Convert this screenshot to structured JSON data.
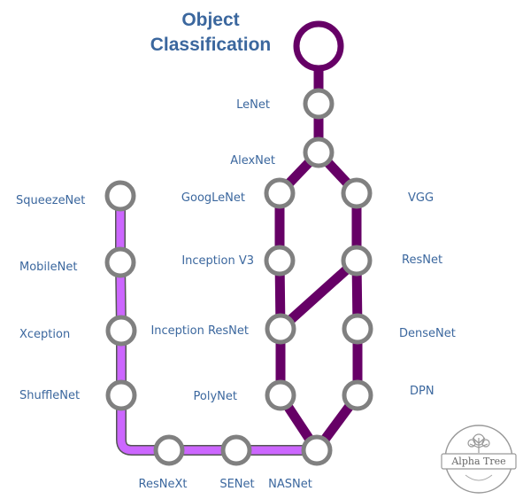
{
  "title": {
    "line1": "Object",
    "line2": "Classification"
  },
  "nodes": {
    "lenet": "LeNet",
    "alexnet": "AlexNet",
    "googlenet": "GoogLeNet",
    "vgg": "VGG",
    "inception_v3": "Inception V3",
    "resnet": "ResNet",
    "inception_resnet": "Inception ResNet",
    "densenet": "DenseNet",
    "polynet": "PolyNet",
    "dpn": "DPN",
    "squeezenet": "SqueezeNet",
    "mobilenet": "MobileNet",
    "xception": "Xception",
    "shufflenet": "ShuffleNet",
    "resnext": "ResNeXt",
    "senet": "SENet",
    "nasnet": "NASNet"
  },
  "logo": {
    "text": "Alpha Tree"
  },
  "colors": {
    "main_line": "#660066",
    "light_line": "#cc66ff",
    "node_stroke": "#808080",
    "title": "#3b679e",
    "label": "#3b679e"
  }
}
